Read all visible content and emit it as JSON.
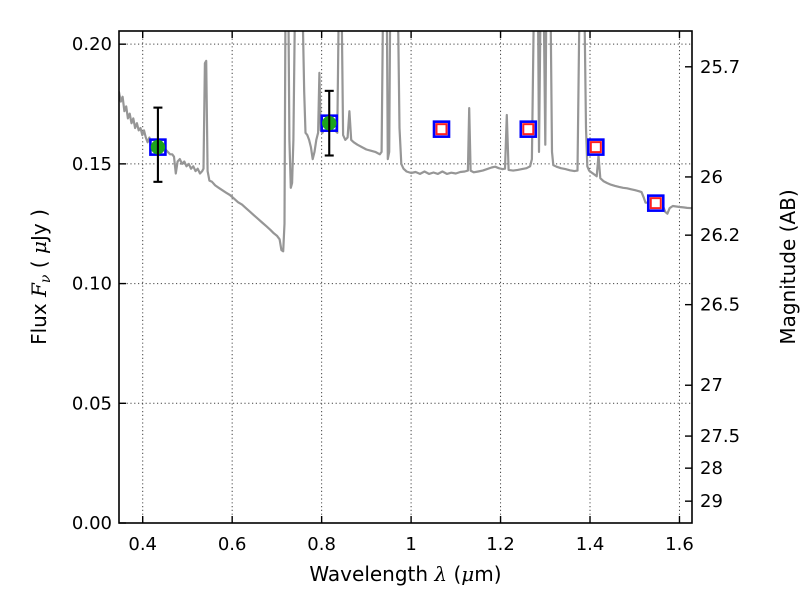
{
  "chart_data": {
    "type": "line+scatter",
    "title": "",
    "xlabel": "Wavelength λ (μm)",
    "xlabel_parts": [
      {
        "t": "Wavelength  ",
        "math": false
      },
      {
        "t": "λ",
        "math": true
      },
      {
        "t": " (",
        "math": false
      },
      {
        "t": "μ",
        "math": true
      },
      {
        "t": "m)",
        "math": false
      }
    ],
    "ylabel_left": "Flux Fν ( μJy )",
    "ylabel_left_parts": [
      {
        "t": "Flux  ",
        "math": false
      },
      {
        "t": "F",
        "math": true
      },
      {
        "t": "ν",
        "math": true,
        "sub": true
      },
      {
        "t": " ( ",
        "math": false
      },
      {
        "t": "μ",
        "math": true
      },
      {
        "t": "Jy )",
        "math": false
      }
    ],
    "ylabel_right": "Magnitude (AB)",
    "xlim": [
      0.347,
      1.628
    ],
    "ylim_flux": [
      0,
      0.2055
    ],
    "grid": true,
    "legend": "none",
    "ab_zeropoint_ujy": 23.9,
    "xticks": [
      {
        "v": 0.4,
        "label": "0.4"
      },
      {
        "v": 0.6,
        "label": "0.6"
      },
      {
        "v": 0.8,
        "label": "0.8"
      },
      {
        "v": 1.0,
        "label": "1"
      },
      {
        "v": 1.2,
        "label": "1.2"
      },
      {
        "v": 1.4,
        "label": "1.4"
      },
      {
        "v": 1.6,
        "label": "1.6"
      }
    ],
    "yticks_left_flux": [
      {
        "v": 0.0,
        "label": "0.00"
      },
      {
        "v": 0.05,
        "label": "0.05"
      },
      {
        "v": 0.1,
        "label": "0.10"
      },
      {
        "v": 0.15,
        "label": "0.15"
      },
      {
        "v": 0.2,
        "label": "0.20"
      }
    ],
    "yticks_right_mag": [
      {
        "v": 25.7,
        "label": "25.7"
      },
      {
        "v": 26.0,
        "label": "26"
      },
      {
        "v": 26.2,
        "label": "26.2"
      },
      {
        "v": 26.5,
        "label": "26.5"
      },
      {
        "v": 27.0,
        "label": "27"
      },
      {
        "v": 27.5,
        "label": "27.5"
      },
      {
        "v": 28.0,
        "label": "28"
      },
      {
        "v": 29.0,
        "label": "29"
      }
    ],
    "series": [
      {
        "name": "model-spectrum",
        "kind": "line",
        "color": "#969696",
        "linewidth": 2.2,
        "points": [
          [
            0.347,
            0.18
          ],
          [
            0.351,
            0.176
          ],
          [
            0.355,
            0.178
          ],
          [
            0.359,
            0.172
          ],
          [
            0.363,
            0.174
          ],
          [
            0.367,
            0.169
          ],
          [
            0.371,
            0.171
          ],
          [
            0.375,
            0.167
          ],
          [
            0.379,
            0.169
          ],
          [
            0.383,
            0.165
          ],
          [
            0.387,
            0.167
          ],
          [
            0.391,
            0.164
          ],
          [
            0.395,
            0.165
          ],
          [
            0.399,
            0.162
          ],
          [
            0.403,
            0.164
          ],
          [
            0.407,
            0.161
          ],
          [
            0.411,
            0.159
          ],
          [
            0.415,
            0.161
          ],
          [
            0.419,
            0.158
          ],
          [
            0.423,
            0.157
          ],
          [
            0.427,
            0.159
          ],
          [
            0.431,
            0.156
          ],
          [
            0.435,
            0.157
          ],
          [
            0.439,
            0.155
          ],
          [
            0.443,
            0.157
          ],
          [
            0.447,
            0.155
          ],
          [
            0.451,
            0.156
          ],
          [
            0.456,
            0.155
          ],
          [
            0.461,
            0.154
          ],
          [
            0.466,
            0.154
          ],
          [
            0.47,
            0.153
          ],
          [
            0.474,
            0.146
          ],
          [
            0.478,
            0.151
          ],
          [
            0.483,
            0.152
          ],
          [
            0.488,
            0.15
          ],
          [
            0.493,
            0.151
          ],
          [
            0.498,
            0.149
          ],
          [
            0.503,
            0.15
          ],
          [
            0.508,
            0.148
          ],
          [
            0.513,
            0.149
          ],
          [
            0.518,
            0.147
          ],
          [
            0.523,
            0.148
          ],
          [
            0.528,
            0.146
          ],
          [
            0.533,
            0.147
          ],
          [
            0.536,
            0.148
          ],
          [
            0.539,
            0.192
          ],
          [
            0.542,
            0.193
          ],
          [
            0.545,
            0.147
          ],
          [
            0.549,
            0.143
          ],
          [
            0.555,
            0.1425
          ],
          [
            0.562,
            0.141
          ],
          [
            0.57,
            0.14
          ],
          [
            0.578,
            0.139
          ],
          [
            0.586,
            0.138
          ],
          [
            0.595,
            0.137
          ],
          [
            0.604,
            0.1355
          ],
          [
            0.613,
            0.134
          ],
          [
            0.622,
            0.133
          ],
          [
            0.631,
            0.1315
          ],
          [
            0.64,
            0.13
          ],
          [
            0.649,
            0.1285
          ],
          [
            0.658,
            0.127
          ],
          [
            0.667,
            0.1255
          ],
          [
            0.676,
            0.124
          ],
          [
            0.685,
            0.1225
          ],
          [
            0.693,
            0.121
          ],
          [
            0.7,
            0.12
          ],
          [
            0.706,
            0.1185
          ],
          [
            0.71,
            0.114
          ],
          [
            0.714,
            0.1135
          ],
          [
            0.717,
            0.125
          ],
          [
            0.719,
            0.21
          ],
          [
            0.726,
            0.21
          ],
          [
            0.728,
            0.16
          ],
          [
            0.731,
            0.14
          ],
          [
            0.734,
            0.142
          ],
          [
            0.737,
            0.16
          ],
          [
            0.74,
            0.21
          ],
          [
            0.758,
            0.21
          ],
          [
            0.761,
            0.18
          ],
          [
            0.764,
            0.163
          ],
          [
            0.768,
            0.162
          ],
          [
            0.772,
            0.16
          ],
          [
            0.776,
            0.157
          ],
          [
            0.78,
            0.152
          ],
          [
            0.784,
            0.155
          ],
          [
            0.788,
            0.16
          ],
          [
            0.792,
            0.163
          ],
          [
            0.795,
            0.188
          ],
          [
            0.798,
            0.164
          ],
          [
            0.802,
            0.163
          ],
          [
            0.806,
            0.165
          ],
          [
            0.81,
            0.164
          ],
          [
            0.815,
            0.166
          ],
          [
            0.82,
            0.167
          ],
          [
            0.825,
            0.166
          ],
          [
            0.83,
            0.164
          ],
          [
            0.835,
            0.163
          ],
          [
            0.838,
            0.21
          ],
          [
            0.845,
            0.21
          ],
          [
            0.848,
            0.162
          ],
          [
            0.853,
            0.16
          ],
          [
            0.858,
            0.161
          ],
          [
            0.862,
            0.172
          ],
          [
            0.866,
            0.16
          ],
          [
            0.872,
            0.159
          ],
          [
            0.88,
            0.158
          ],
          [
            0.89,
            0.157
          ],
          [
            0.9,
            0.156
          ],
          [
            0.91,
            0.1555
          ],
          [
            0.92,
            0.155
          ],
          [
            0.93,
            0.154
          ],
          [
            0.934,
            0.155
          ],
          [
            0.937,
            0.21
          ],
          [
            0.946,
            0.21
          ],
          [
            0.948,
            0.152
          ],
          [
            0.951,
            0.155
          ],
          [
            0.953,
            0.21
          ],
          [
            0.971,
            0.21
          ],
          [
            0.974,
            0.165
          ],
          [
            0.978,
            0.15
          ],
          [
            0.983,
            0.148
          ],
          [
            0.99,
            0.1468
          ],
          [
            1.0,
            0.1462
          ],
          [
            1.01,
            0.1466
          ],
          [
            1.02,
            0.1458
          ],
          [
            1.03,
            0.1468
          ],
          [
            1.04,
            0.1458
          ],
          [
            1.05,
            0.1464
          ],
          [
            1.06,
            0.1458
          ],
          [
            1.07,
            0.1468
          ],
          [
            1.08,
            0.1458
          ],
          [
            1.09,
            0.1463
          ],
          [
            1.1,
            0.146
          ],
          [
            1.11,
            0.1466
          ],
          [
            1.12,
            0.1468
          ],
          [
            1.127,
            0.1472
          ],
          [
            1.13,
            0.1733
          ],
          [
            1.133,
            0.1472
          ],
          [
            1.14,
            0.1465
          ],
          [
            1.15,
            0.1468
          ],
          [
            1.16,
            0.1472
          ],
          [
            1.17,
            0.1478
          ],
          [
            1.18,
            0.1485
          ],
          [
            1.188,
            0.1488
          ],
          [
            1.196,
            0.1482
          ],
          [
            1.204,
            0.1478
          ],
          [
            1.21,
            0.148
          ],
          [
            1.214,
            0.1704
          ],
          [
            1.218,
            0.1475
          ],
          [
            1.228,
            0.1472
          ],
          [
            1.238,
            0.1475
          ],
          [
            1.248,
            0.1478
          ],
          [
            1.258,
            0.1482
          ],
          [
            1.266,
            0.149
          ],
          [
            1.27,
            0.152
          ],
          [
            1.274,
            0.21
          ],
          [
            1.284,
            0.21
          ],
          [
            1.286,
            0.155
          ],
          [
            1.289,
            0.21
          ],
          [
            1.297,
            0.21
          ],
          [
            1.3,
            0.158
          ],
          [
            1.302,
            0.21
          ],
          [
            1.312,
            0.21
          ],
          [
            1.315,
            0.155
          ],
          [
            1.318,
            0.1495
          ],
          [
            1.325,
            0.1488
          ],
          [
            1.335,
            0.1482
          ],
          [
            1.345,
            0.1478
          ],
          [
            1.355,
            0.1473
          ],
          [
            1.365,
            0.147
          ],
          [
            1.372,
            0.1472
          ],
          [
            1.376,
            0.21
          ],
          [
            1.388,
            0.21
          ],
          [
            1.391,
            0.165
          ],
          [
            1.394,
            0.149
          ],
          [
            1.398,
            0.1472
          ],
          [
            1.404,
            0.1463
          ],
          [
            1.41,
            0.1455
          ],
          [
            1.415,
            0.1448
          ],
          [
            1.419,
            0.1535
          ],
          [
            1.423,
            0.144
          ],
          [
            1.43,
            0.1428
          ],
          [
            1.438,
            0.142
          ],
          [
            1.447,
            0.1413
          ],
          [
            1.456,
            0.1408
          ],
          [
            1.465,
            0.1404
          ],
          [
            1.474,
            0.14
          ],
          [
            1.483,
            0.1398
          ],
          [
            1.492,
            0.1394
          ],
          [
            1.501,
            0.139
          ],
          [
            1.509,
            0.1386
          ],
          [
            1.515,
            0.1382
          ],
          [
            1.52,
            0.136
          ],
          [
            1.524,
            0.1338
          ],
          [
            1.53,
            0.1338
          ],
          [
            1.538,
            0.134
          ],
          [
            1.546,
            0.1337
          ],
          [
            1.554,
            0.1334
          ],
          [
            1.562,
            0.133
          ],
          [
            1.568,
            0.13
          ],
          [
            1.573,
            0.1292
          ],
          [
            1.578,
            0.1315
          ],
          [
            1.585,
            0.1324
          ],
          [
            1.593,
            0.1322
          ],
          [
            1.601,
            0.132
          ],
          [
            1.609,
            0.1318
          ],
          [
            1.617,
            0.1316
          ],
          [
            1.628,
            0.1315
          ]
        ]
      },
      {
        "name": "observed-photometry",
        "kind": "scatter",
        "marker": "circle-in-square-with-errorbar",
        "points": [
          {
            "x": 0.434,
            "y": 0.157,
            "err_lo": 0.0145,
            "err_hi": 0.0165
          },
          {
            "x": 0.817,
            "y": 0.167,
            "err_lo": 0.0135,
            "err_hi": 0.0135
          }
        ]
      },
      {
        "name": "model-photometry",
        "kind": "scatter",
        "marker": "red-square-in-blue-square",
        "points": [
          {
            "x": 1.068,
            "y": 0.1645
          },
          {
            "x": 1.262,
            "y": 0.1645
          },
          {
            "x": 1.413,
            "y": 0.157
          },
          {
            "x": 1.547,
            "y": 0.1336
          }
        ]
      }
    ],
    "style": {
      "spectrum_color": "#969696",
      "blue_square_color": "#0000ff",
      "red_square_color": "#ff1f1f",
      "green_circle_color": "#1da41d",
      "errorbar_color": "#000000",
      "grid_color": "#444444",
      "frame_color": "#000000",
      "background": "#ffffff"
    }
  }
}
